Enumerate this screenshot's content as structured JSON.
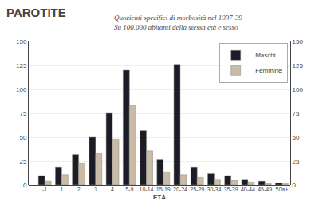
{
  "chart_data": {
    "type": "bar",
    "title": "PAROTITE",
    "subtitle": [
      "Quozienti specifici di morbosità nel 1937-39",
      "Su 100.000 abitanti della stessa età e sesso"
    ],
    "xlabel": "ETÀ",
    "categories": [
      "-1",
      "1",
      "2",
      "3",
      "4",
      "5-9",
      "10-14",
      "15-19",
      "20-24",
      "25-29",
      "30-34",
      "35-39",
      "40-44",
      "45-49",
      "50a+"
    ],
    "series": [
      {
        "name": "  Maschi",
        "color": "#1c1c28",
        "values": [
          10,
          19,
          32,
          50,
          75,
          120,
          57,
          27,
          126,
          19,
          12,
          10,
          6,
          4,
          2
        ]
      },
      {
        "name": "  Femmine",
        "color": "#c8bca8",
        "values": [
          4,
          11,
          23,
          33,
          48,
          83,
          36,
          14,
          11,
          8,
          6,
          5,
          3,
          2,
          2
        ]
      }
    ],
    "ylim": [
      0,
      150
    ],
    "yticks": [
      0,
      25,
      50,
      75,
      100,
      125,
      150
    ],
    "y2lim": [
      0,
      150
    ],
    "y2ticks": [
      0,
      25,
      50,
      75,
      100,
      125,
      150
    ],
    "grid": true,
    "legend": "upper right"
  }
}
